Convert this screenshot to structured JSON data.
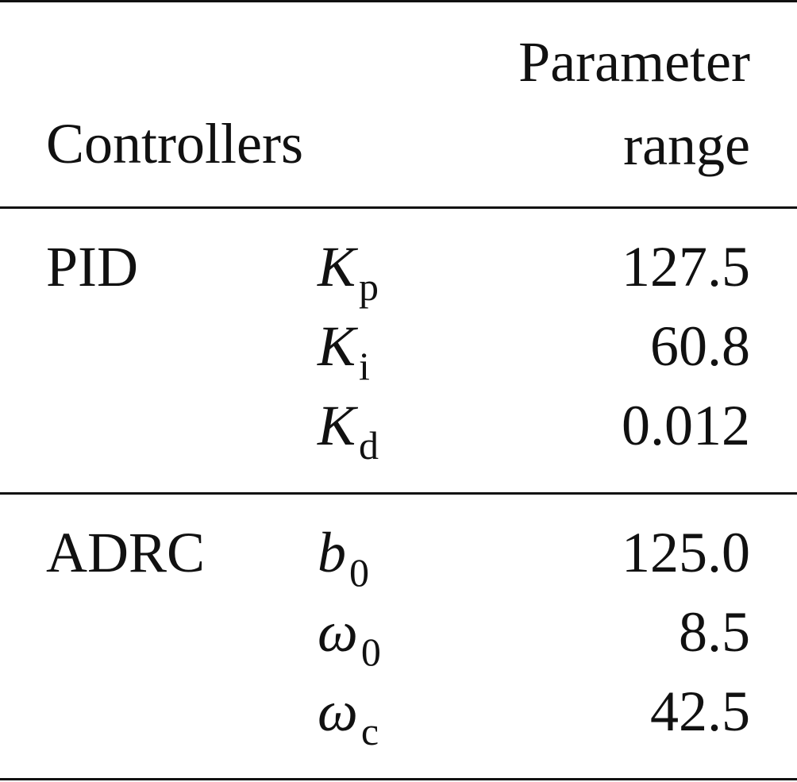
{
  "header": {
    "columns": [
      "Controllers",
      "Parameter range"
    ]
  },
  "groups": [
    {
      "name": "PID",
      "rows": [
        {
          "symbol": "K",
          "subscript": "p",
          "value": "127.5"
        },
        {
          "symbol": "K",
          "subscript": "i",
          "value": "60.8"
        },
        {
          "symbol": "K",
          "subscript": "d",
          "value": "0.012"
        }
      ]
    },
    {
      "name": "ADRC",
      "rows": [
        {
          "symbol": "b",
          "subscript": "0",
          "value": "125.0"
        },
        {
          "symbol": "ω",
          "subscript": "0",
          "value": "8.5"
        },
        {
          "symbol": "ω",
          "subscript": "c",
          "value": "42.5"
        }
      ]
    }
  ]
}
